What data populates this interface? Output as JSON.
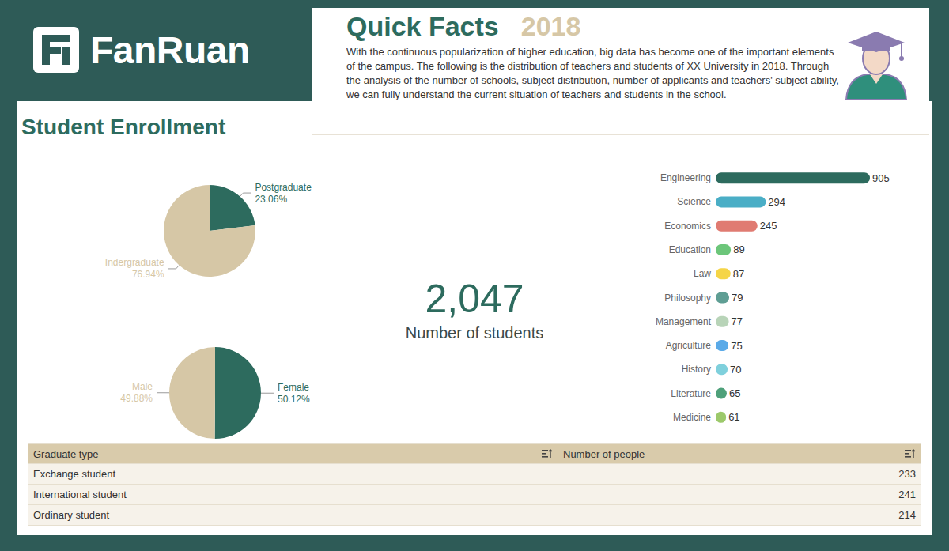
{
  "logo": "FanRuan",
  "header": {
    "title": "Quick Facts",
    "year": "2018",
    "text": "With the continuous popularization of higher education, big data has become one of the important elements of the campus. The following is the distribution of teachers and students of XX University in 2018. Through the analysis of the number of schools, subject distribution, number of applicants and teachers' subject ability, we can fully understand the current situation of teachers and students in the school."
  },
  "section_title": "Student Enrollment",
  "kpi": {
    "number": "2,047",
    "caption": "Number of students"
  },
  "chart_data": [
    {
      "type": "pie",
      "categories": [
        "Postgraduate",
        "Indergraduate"
      ],
      "values": [
        23.06,
        76.94
      ],
      "value_labels": [
        "23.06%",
        "76.94%"
      ],
      "colors": [
        "#2d6b5e",
        "#d6c7a6"
      ],
      "data_labels": true
    },
    {
      "type": "pie",
      "categories": [
        "Female",
        "Male"
      ],
      "values": [
        50.12,
        49.88
      ],
      "value_labels": [
        "50.12%",
        "49.88%"
      ],
      "colors": [
        "#2d6b5e",
        "#d6c7a6"
      ],
      "data_labels": true
    },
    {
      "type": "bar",
      "orientation": "horizontal",
      "categories": [
        "Engineering",
        "Science",
        "Economics",
        "Education",
        "Law",
        "Philosophy",
        "Management",
        "Agriculture",
        "History",
        "Literature",
        "Medicine"
      ],
      "values": [
        905,
        294,
        245,
        89,
        87,
        79,
        77,
        75,
        70,
        65,
        61
      ],
      "colors": [
        "#2d6b5e",
        "#4aaec6",
        "#e07b72",
        "#6cc67a",
        "#f5d547",
        "#5f9e94",
        "#b8d4b8",
        "#5aaae8",
        "#7fd0dc",
        "#4ea07a",
        "#9cc96b"
      ],
      "xlim": [
        0,
        905
      ],
      "data_labels": true,
      "tick_labels": "y"
    }
  ],
  "table": {
    "header": [
      "Graduate type",
      "Number of people"
    ],
    "rows": [
      [
        "Exchange student",
        233
      ],
      [
        "International student",
        241
      ],
      [
        "Ordinary student",
        214
      ]
    ]
  }
}
